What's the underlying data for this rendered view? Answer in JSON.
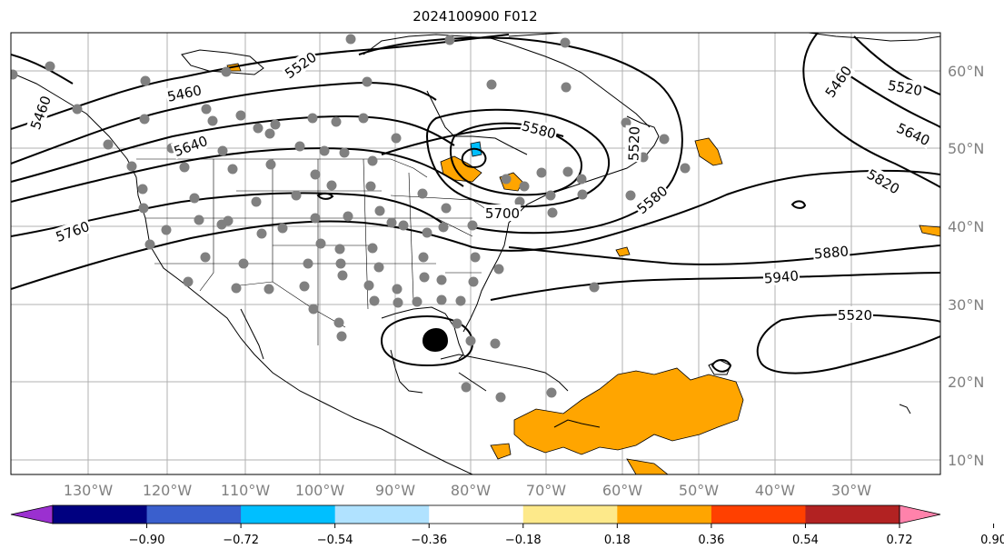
{
  "title": "2024100900 F012",
  "map": {
    "latitude_labels": [
      "60°N",
      "50°N",
      "40°N",
      "30°N",
      "20°N",
      "10°N"
    ],
    "longitude_labels": [
      "130°W",
      "120°W",
      "110°W",
      "100°W",
      "90°W",
      "80°W",
      "70°W",
      "60°W",
      "50°W",
      "40°W",
      "30°W"
    ],
    "contour_labels": [
      "5460",
      "5520",
      "5640",
      "5760",
      "5460",
      "5580",
      "5520",
      "5700",
      "5580",
      "5460",
      "5520",
      "5640",
      "5820",
      "5880",
      "5940",
      "5520"
    ],
    "colors": {
      "contour": "#000000",
      "coast": "#000000",
      "grid": "#b0b0b0",
      "station": "#808080",
      "positive_shading": "#ffa500",
      "negative_shading": "#00bfff"
    }
  },
  "colorbar": {
    "ticks": [
      "−0.90",
      "−0.72",
      "−0.54",
      "−0.36",
      "−0.18",
      "0.18",
      "0.36",
      "0.54",
      "0.72",
      "0.90"
    ],
    "colors": [
      "#9b30d0",
      "#000080",
      "#3a5fcd",
      "#00bfff",
      "#b0e2ff",
      "#ffffff",
      "#fde98a",
      "#ffa500",
      "#ff4000",
      "#b22222",
      "#ff82ab"
    ]
  }
}
